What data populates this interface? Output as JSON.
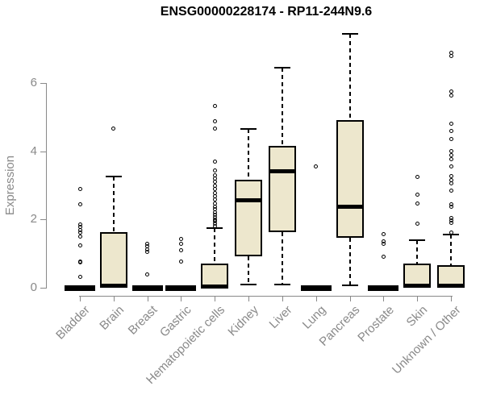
{
  "chart_data": {
    "type": "boxplot",
    "title": "ENSG00000228174 - RP11-244N9.6",
    "ylabel": "Expression",
    "xlabel": "",
    "ylim": [
      0,
      7.5
    ],
    "yticks": [
      0,
      2,
      4,
      6
    ],
    "grid": false,
    "legend": "none",
    "box_fill_color": "#EDE7CD",
    "axis_color": "#898989",
    "categories": [
      "Bladder",
      "Brain",
      "Breast",
      "Gastric",
      "Hematopoietic cells",
      "Kidney",
      "Liver",
      "Lung",
      "Pancreas",
      "Prostate",
      "Skin",
      "Unknown / Other"
    ],
    "series": [
      {
        "category": "Bladder",
        "low": 0,
        "q1": 0,
        "median": 0,
        "q3": 0,
        "high": 0,
        "outliers": [
          0.33,
          0.74,
          0.78,
          1.25,
          1.5,
          1.62,
          1.7,
          1.78,
          1.86,
          2.44,
          2.9
        ]
      },
      {
        "category": "Brain",
        "low": 0,
        "q1": 0,
        "median": 0.05,
        "q3": 1.63,
        "high": 3.26,
        "outliers": [
          4.68
        ]
      },
      {
        "category": "Breast",
        "low": 0,
        "q1": 0,
        "median": 0,
        "q3": 0,
        "high": 0,
        "outliers": [
          0.38,
          1.05,
          1.12,
          1.22,
          1.3
        ]
      },
      {
        "category": "Gastric",
        "low": 0,
        "q1": 0,
        "median": 0,
        "q3": 0,
        "high": 0,
        "outliers": [
          0.76,
          1.11,
          1.28,
          1.42
        ]
      },
      {
        "category": "Hematopoietic cells",
        "low": 0,
        "q1": 0,
        "median": 0.04,
        "q3": 0.71,
        "high": 1.75,
        "outliers": [
          1.82,
          1.88,
          1.95,
          2.0,
          2.08,
          2.15,
          2.22,
          2.3,
          2.38,
          2.48,
          2.58,
          2.68,
          2.78,
          2.9,
          3.0,
          3.1,
          3.2,
          3.3,
          3.45,
          3.69,
          4.66,
          4.87,
          5.34
        ]
      },
      {
        "category": "Kidney",
        "low": 0.09,
        "q1": 0.92,
        "median": 2.57,
        "q3": 3.17,
        "high": 4.66,
        "outliers": []
      },
      {
        "category": "Liver",
        "low": 0.09,
        "q1": 1.63,
        "median": 3.41,
        "q3": 4.16,
        "high": 6.45,
        "outliers": []
      },
      {
        "category": "Lung",
        "low": 0,
        "q1": 0,
        "median": 0,
        "q3": 0,
        "high": 0,
        "outliers": [
          3.55
        ]
      },
      {
        "category": "Pancreas",
        "low": 0.07,
        "q1": 1.47,
        "median": 2.37,
        "q3": 4.92,
        "high": 7.45,
        "outliers": []
      },
      {
        "category": "Prostate",
        "low": 0,
        "q1": 0,
        "median": 0,
        "q3": 0,
        "high": 0,
        "outliers": [
          0.92,
          1.28,
          1.35,
          1.58
        ]
      },
      {
        "category": "Skin",
        "low": 0,
        "q1": 0,
        "median": 0.05,
        "q3": 0.71,
        "high": 1.4,
        "outliers": [
          1.89,
          2.47,
          2.74,
          3.26
        ]
      },
      {
        "category": "Unknown / Other",
        "low": 0,
        "q1": 0,
        "median": 0.05,
        "q3": 0.67,
        "high": 1.55,
        "outliers": [
          1.63,
          1.9,
          1.97,
          2.05,
          2.38,
          2.45,
          2.84,
          3.05,
          3.15,
          3.28,
          3.55,
          3.78,
          3.9,
          4.0,
          4.37,
          4.59,
          4.82,
          5.65,
          5.75,
          6.8,
          6.9
        ]
      }
    ]
  }
}
